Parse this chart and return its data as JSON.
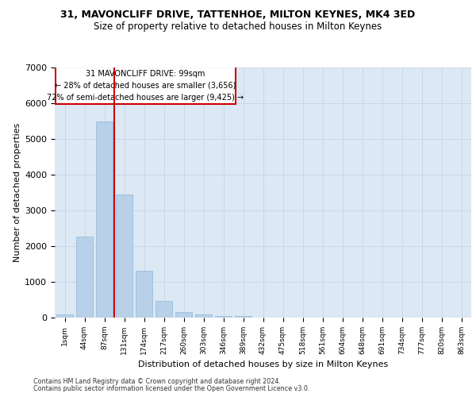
{
  "title_line1": "31, MAVONCLIFF DRIVE, TATTENHOE, MILTON KEYNES, MK4 3ED",
  "title_line2": "Size of property relative to detached houses in Milton Keynes",
  "xlabel": "Distribution of detached houses by size in Milton Keynes",
  "ylabel": "Number of detached properties",
  "footer_line1": "Contains HM Land Registry data © Crown copyright and database right 2024.",
  "footer_line2": "Contains public sector information licensed under the Open Government Licence v3.0.",
  "bar_labels": [
    "1sqm",
    "44sqm",
    "87sqm",
    "131sqm",
    "174sqm",
    "217sqm",
    "260sqm",
    "303sqm",
    "346sqm",
    "389sqm",
    "432sqm",
    "475sqm",
    "518sqm",
    "561sqm",
    "604sqm",
    "648sqm",
    "691sqm",
    "734sqm",
    "777sqm",
    "820sqm",
    "863sqm"
  ],
  "bar_values": [
    80,
    2270,
    5480,
    3440,
    1320,
    460,
    160,
    90,
    55,
    35,
    5,
    3,
    2,
    1,
    0,
    0,
    0,
    0,
    0,
    0,
    0
  ],
  "bar_color": "#b8d0e8",
  "bar_edge_color": "#90b8d8",
  "grid_color": "#c8d8e8",
  "background_color": "#dce8f4",
  "vline_bar_index": 2,
  "vline_color": "#cc0000",
  "annotation_text_line1": "31 MAVONCLIFF DRIVE: 99sqm",
  "annotation_text_line2": "← 28% of detached houses are smaller (3,656)",
  "annotation_text_line3": "72% of semi-detached houses are larger (9,425) →",
  "annotation_box_color": "#cc0000",
  "ylim": [
    0,
    7000
  ],
  "yticks": [
    0,
    1000,
    2000,
    3000,
    4000,
    5000,
    6000,
    7000
  ]
}
